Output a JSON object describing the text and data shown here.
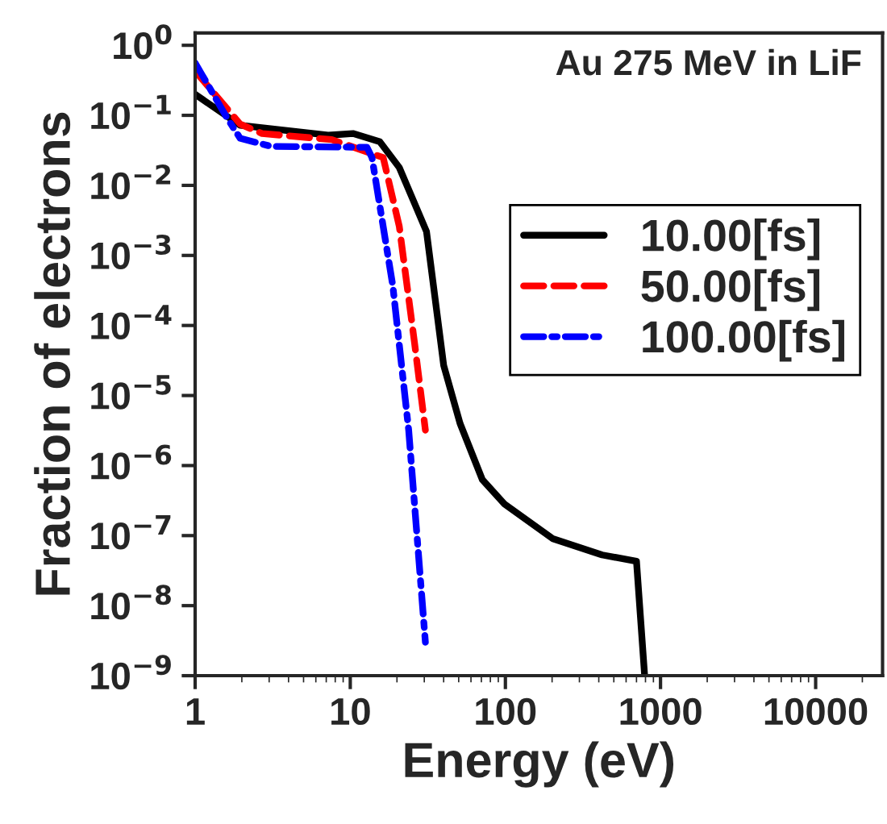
{
  "chart_data": {
    "type": "line",
    "title": "Au 275 MeV in LiF",
    "xlabel": "Energy (eV)",
    "ylabel": "Fraction of electrons",
    "log": "xy",
    "legend": "right",
    "grid": false,
    "xlim": [
      1,
      27000
    ],
    "ylim": [
      1e-09,
      1.5
    ],
    "xticks": [
      1,
      10,
      100,
      1000,
      10000
    ],
    "yticks": [
      {
        "value": 1,
        "label": "10$^{0}$"
      },
      {
        "value": 0.1,
        "label": "10$^{−1}$"
      },
      {
        "value": 0.01,
        "label": "10$^{−2}$"
      },
      {
        "value": 0.001,
        "label": "10$^{−3}$"
      },
      {
        "value": 0.0001,
        "label": "10$^{−4}$"
      },
      {
        "value": 1e-05,
        "label": "10$^{−5}$"
      },
      {
        "value": 1e-06,
        "label": "10$^{−6}$"
      },
      {
        "value": 1e-07,
        "label": "10$^{−7}$"
      },
      {
        "value": 1e-08,
        "label": "10$^{−8}$"
      },
      {
        "value": 1e-09,
        "label": "10$^{−9}$"
      }
    ],
    "series": [
      {
        "name": "10.00[fs]",
        "color": "#000000",
        "line_style": "solid",
        "x": [
          1,
          1.95,
          7.2,
          10.4,
          15.5,
          20.7,
          31,
          40,
          51,
          71,
          99,
          203,
          420,
          700,
          790
        ],
        "values": [
          0.2,
          0.072,
          0.052,
          0.055,
          0.042,
          0.018,
          0.0022,
          2.7e-05,
          4e-06,
          6.3e-07,
          2.8e-07,
          9e-08,
          5.3e-08,
          4.3e-08,
          1e-09
        ]
      },
      {
        "name": "50.00[fs]",
        "color": "#ff0000",
        "line_style": "dashed",
        "x": [
          1,
          1.95,
          2.7,
          7.6,
          16.3,
          20.7,
          26,
          30.5
        ],
        "values": [
          0.43,
          0.075,
          0.055,
          0.045,
          0.025,
          0.0026,
          5.5e-05,
          3.2e-06
        ]
      },
      {
        "name": "100.00[fs]",
        "color": "#0000ff",
        "line_style": "dashdot",
        "x": [
          1,
          1.6,
          1.95,
          3.1,
          12.8,
          13.8,
          18.8,
          23.8,
          30.5
        ],
        "values": [
          0.56,
          0.093,
          0.047,
          0.036,
          0.035,
          0.025,
          0.00037,
          3.2e-06,
          3e-09
        ]
      }
    ]
  }
}
